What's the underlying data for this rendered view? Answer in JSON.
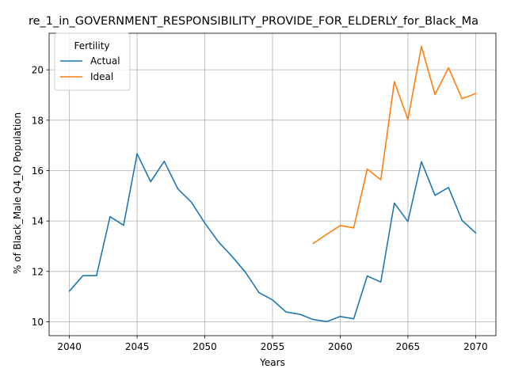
{
  "chart_data": {
    "type": "line",
    "title": "re_1_in_GOVERNMENT_RESPONSIBILITY_PROVIDE_FOR_ELDERLY_for_Black_Ma",
    "xlabel": "Years",
    "ylabel": "% of Black_Male Q4_IQ Population",
    "xlim": [
      2038.5,
      2071.5
    ],
    "ylim": [
      9.45,
      21.45
    ],
    "xticks": [
      2040,
      2045,
      2050,
      2055,
      2060,
      2065,
      2070
    ],
    "yticks": [
      10,
      12,
      14,
      16,
      18,
      20
    ],
    "grid": true,
    "legend": {
      "title": "Fertility",
      "placement": "top-left"
    },
    "series": [
      {
        "name": "Actual",
        "color": "#1f77b4",
        "x": [
          2040,
          2041,
          2042,
          2043,
          2044,
          2045,
          2046,
          2047,
          2048,
          2049,
          2050,
          2051,
          2052,
          2053,
          2054,
          2055,
          2056,
          2057,
          2058,
          2059,
          2060,
          2061,
          2062,
          2063,
          2064,
          2065,
          2066,
          2067,
          2068,
          2069,
          2070
        ],
        "values": [
          11.22,
          11.83,
          11.83,
          14.17,
          13.83,
          16.67,
          15.56,
          16.37,
          15.28,
          14.75,
          13.92,
          13.18,
          12.6,
          11.97,
          11.16,
          10.87,
          10.39,
          10.3,
          10.09,
          10.01,
          10.21,
          10.12,
          11.82,
          11.58,
          14.71,
          13.98,
          16.35,
          15.02,
          15.33,
          14.02,
          13.53
        ]
      },
      {
        "name": "Ideal",
        "color": "#ff7f0e",
        "x": [
          2058,
          2059,
          2060,
          2061,
          2062,
          2063,
          2064,
          2065,
          2066,
          2067,
          2068,
          2069,
          2070
        ],
        "values": [
          13.11,
          13.47,
          13.82,
          13.73,
          16.06,
          15.64,
          19.53,
          18.03,
          20.93,
          19.02,
          20.08,
          18.85,
          19.06
        ]
      }
    ]
  }
}
